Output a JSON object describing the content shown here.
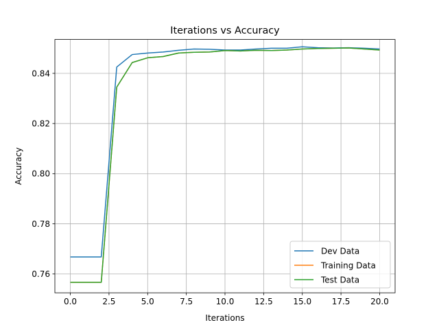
{
  "chart_data": {
    "type": "line",
    "title": "Iterations vs Accuracy",
    "xlabel": "Iterations",
    "ylabel": "Accuracy",
    "xlim": [
      -1,
      21
    ],
    "ylim": [
      0.7525,
      0.8535
    ],
    "xticks": [
      0.0,
      2.5,
      5.0,
      7.5,
      10.0,
      12.5,
      15.0,
      17.5,
      20.0
    ],
    "xtick_labels": [
      "0.0",
      "2.5",
      "5.0",
      "7.5",
      "10.0",
      "12.5",
      "15.0",
      "17.5",
      "20.0"
    ],
    "yticks": [
      0.76,
      0.78,
      0.8,
      0.82,
      0.84
    ],
    "ytick_labels": [
      "0.76",
      "0.78",
      "0.80",
      "0.82",
      "0.84"
    ],
    "grid": true,
    "legend_position": "bottom-right",
    "x": [
      0,
      1,
      2,
      3,
      4,
      5,
      6,
      7,
      8,
      9,
      10,
      11,
      12,
      13,
      14,
      15,
      16,
      17,
      18,
      19,
      20
    ],
    "series": [
      {
        "name": "Dev Data",
        "color": "#1f77b4",
        "values": [
          0.7668,
          0.7668,
          0.7668,
          0.8425,
          0.8475,
          0.8481,
          0.8485,
          0.8492,
          0.8497,
          0.8496,
          0.8493,
          0.8493,
          0.8497,
          0.85,
          0.85,
          0.8506,
          0.8502,
          0.8501,
          0.8502,
          0.85,
          0.8497
        ]
      },
      {
        "name": "Training Data",
        "color": "#ff7f0e",
        "values": [
          0.7567,
          0.7567,
          0.7567,
          0.8345,
          0.8443,
          0.8462,
          0.8467,
          0.8481,
          0.8484,
          0.8485,
          0.8491,
          0.8489,
          0.8492,
          0.8491,
          0.8493,
          0.8497,
          0.8499,
          0.85,
          0.8501,
          0.8497,
          0.8493
        ]
      },
      {
        "name": "Test Data",
        "color": "#2ca02c",
        "values": [
          0.7567,
          0.7567,
          0.7567,
          0.8345,
          0.8443,
          0.8462,
          0.8467,
          0.8481,
          0.8484,
          0.8485,
          0.8491,
          0.8489,
          0.8492,
          0.8491,
          0.8493,
          0.8497,
          0.8499,
          0.85,
          0.8501,
          0.8497,
          0.8493
        ]
      }
    ]
  }
}
